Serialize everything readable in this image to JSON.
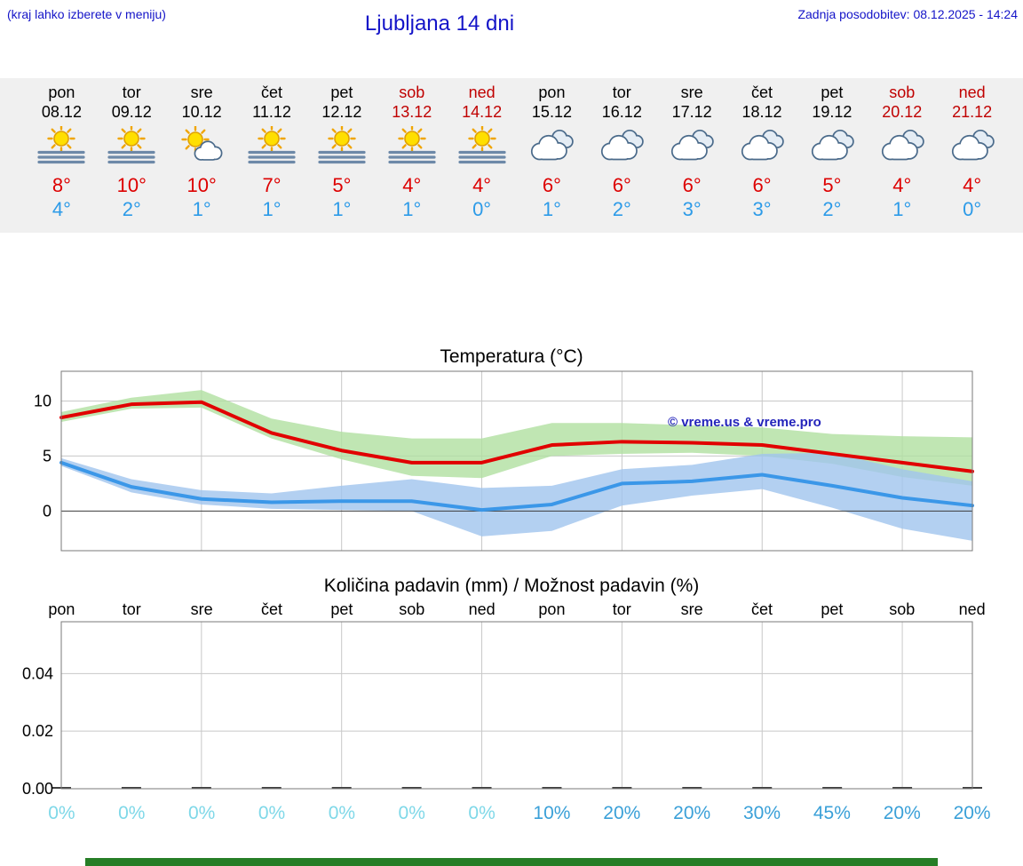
{
  "header": {
    "hint": "(kraj lahko izberete v meniju)",
    "title": "Ljubljana 14 dni",
    "last_update": "Zadnja posodobitev: 08.12.2025 - 14:24"
  },
  "colors": {
    "link_blue": "#1414c8",
    "high_red": "#dd0000",
    "low_blue": "#2d9be8",
    "weekend_red": "#c00000",
    "percent_zero": "#7fd8e8",
    "percent_value": "#3aa0d8",
    "banner_green": "#267e26"
  },
  "days": [
    {
      "name": "pon",
      "date": "08.12",
      "weekend": false,
      "icon": "sun-fog",
      "high": "8°",
      "low": "4°"
    },
    {
      "name": "tor",
      "date": "09.12",
      "weekend": false,
      "icon": "sun-fog",
      "high": "10°",
      "low": "2°"
    },
    {
      "name": "sre",
      "date": "10.12",
      "weekend": false,
      "icon": "sun-cloud",
      "high": "10°",
      "low": "1°"
    },
    {
      "name": "čet",
      "date": "11.12",
      "weekend": false,
      "icon": "sun-fog",
      "high": "7°",
      "low": "1°"
    },
    {
      "name": "pet",
      "date": "12.12",
      "weekend": false,
      "icon": "sun-fog",
      "high": "5°",
      "low": "1°"
    },
    {
      "name": "sob",
      "date": "13.12",
      "weekend": true,
      "icon": "sun-fog",
      "high": "4°",
      "low": "1°"
    },
    {
      "name": "ned",
      "date": "14.12",
      "weekend": true,
      "icon": "sun-fog",
      "high": "4°",
      "low": "0°"
    },
    {
      "name": "pon",
      "date": "15.12",
      "weekend": false,
      "icon": "cloudy",
      "high": "6°",
      "low": "1°"
    },
    {
      "name": "tor",
      "date": "16.12",
      "weekend": false,
      "icon": "cloudy",
      "high": "6°",
      "low": "2°"
    },
    {
      "name": "sre",
      "date": "17.12",
      "weekend": false,
      "icon": "cloudy",
      "high": "6°",
      "low": "3°"
    },
    {
      "name": "čet",
      "date": "18.12",
      "weekend": false,
      "icon": "cloudy",
      "high": "6°",
      "low": "3°"
    },
    {
      "name": "pet",
      "date": "19.12",
      "weekend": false,
      "icon": "cloudy",
      "high": "5°",
      "low": "2°"
    },
    {
      "name": "sob",
      "date": "20.12",
      "weekend": true,
      "icon": "cloudy",
      "high": "4°",
      "low": "1°"
    },
    {
      "name": "ned",
      "date": "21.12",
      "weekend": true,
      "icon": "cloudy",
      "high": "4°",
      "low": "0°"
    }
  ],
  "chart_data": [
    {
      "type": "line",
      "title": "Temperatura (°C)",
      "watermark": "© vreme.us & vreme.pro",
      "categories": [
        "08.12",
        "09.12",
        "10.12",
        "11.12",
        "12.12",
        "13.12",
        "14.12",
        "15.12",
        "16.12",
        "17.12",
        "18.12",
        "19.12",
        "20.12",
        "21.12"
      ],
      "yticks": [
        0,
        5,
        10
      ],
      "ytick_decimals": 0,
      "ylim": [
        -3.6,
        12.7
      ],
      "x_gridline_days": [
        2,
        4,
        6,
        8,
        10,
        12
      ],
      "series": [
        {
          "name": "temp-high",
          "color": "#e10000",
          "values": [
            8.5,
            9.7,
            9.9,
            7.1,
            5.5,
            4.4,
            4.4,
            6.0,
            6.3,
            6.2,
            6.0,
            5.2,
            4.4,
            3.6
          ],
          "band_color": "#b0e0a0",
          "band_upper": [
            9.0,
            10.3,
            11.0,
            8.4,
            7.2,
            6.6,
            6.6,
            8.0,
            8.0,
            7.8,
            7.6,
            7.0,
            6.8,
            6.7
          ],
          "band_lower": [
            8.1,
            9.3,
            9.4,
            6.6,
            4.7,
            3.2,
            3.0,
            5.0,
            5.2,
            5.3,
            5.0,
            4.3,
            3.1,
            2.3
          ]
        },
        {
          "name": "temp-low",
          "color": "#3b97e8",
          "values": [
            4.4,
            2.2,
            1.1,
            0.8,
            0.9,
            0.9,
            0.1,
            0.6,
            2.5,
            2.7,
            3.3,
            2.3,
            1.2,
            0.5
          ],
          "band_color": "#a0c4ee",
          "band_upper": [
            4.8,
            2.9,
            1.9,
            1.6,
            2.3,
            2.9,
            2.1,
            2.3,
            3.8,
            4.2,
            5.2,
            5.3,
            3.8,
            2.7
          ],
          "band_lower": [
            4.1,
            1.7,
            0.6,
            0.2,
            0.1,
            0.0,
            -2.3,
            -1.8,
            0.5,
            1.4,
            2.0,
            0.3,
            -1.6,
            -2.7
          ]
        }
      ]
    },
    {
      "type": "bar",
      "title": "Količina padavin (mm) / Možnost padavin (%)",
      "categories": [
        "pon",
        "tor",
        "sre",
        "čet",
        "pet",
        "sob",
        "ned",
        "pon",
        "tor",
        "sre",
        "čet",
        "pet",
        "sob",
        "ned"
      ],
      "yticks": [
        0,
        0.02,
        0.04
      ],
      "ytick_decimals": 2,
      "ylim": [
        0,
        0.058
      ],
      "x_gridline_days": [
        2,
        4,
        6,
        8,
        10,
        12
      ],
      "values": [
        0,
        0,
        0,
        0,
        0,
        0,
        0,
        0,
        0,
        0,
        0,
        0,
        0,
        0
      ],
      "percentages": [
        "0%",
        "0%",
        "0%",
        "0%",
        "0%",
        "0%",
        "0%",
        "10%",
        "20%",
        "20%",
        "30%",
        "45%",
        "20%",
        "20%"
      ]
    }
  ]
}
